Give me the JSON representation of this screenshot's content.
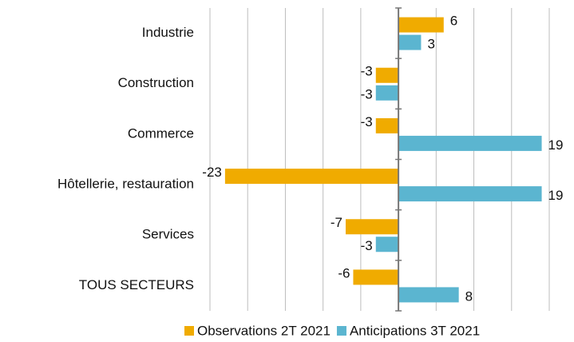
{
  "chart_data": {
    "type": "barh",
    "categories": [
      "Industrie",
      "Construction",
      "Commerce",
      "Hôtellerie, restauration",
      "Services",
      "TOUS SECTEURS"
    ],
    "series": [
      {
        "name": "Observations 2T 2021",
        "color": "#f0ab00",
        "values": [
          6,
          -3,
          -3,
          -23,
          -7,
          -6
        ]
      },
      {
        "name": "Anticipations 3T 2021",
        "color": "#5bb5d0",
        "values": [
          3,
          -3,
          19,
          19,
          -3,
          8
        ]
      }
    ],
    "xlim": [
      -25,
      20
    ],
    "xticks": [
      -25,
      -20,
      -15,
      -10,
      -5,
      0,
      5,
      10,
      15,
      20
    ],
    "grid": true
  }
}
